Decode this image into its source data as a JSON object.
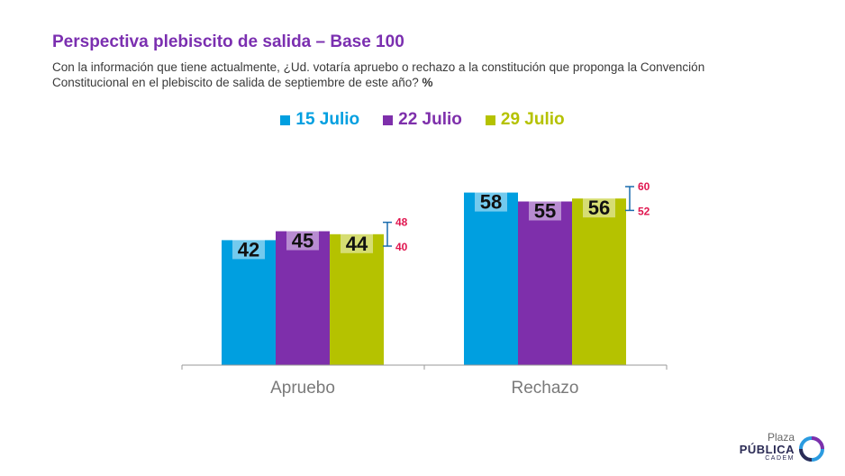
{
  "header": {
    "title": "Perspectiva plebiscito de salida – Base 100",
    "subtitle": "Con la información que tiene actualmente, ¿Ud. votaría apruebo o rechazo a la constitución que proponga la Convención Constitucional en el plebiscito de salida de septiembre de este año?",
    "unit": "%"
  },
  "colors": {
    "s1": "#009fe0",
    "s2": "#7e2fab",
    "s3": "#b5c200",
    "error": "#e0164f",
    "errorbar": "#1b6cae"
  },
  "chart_data": {
    "type": "bar",
    "categories": [
      "Apruebo",
      "Rechazo"
    ],
    "series": [
      {
        "name": "15 Julio",
        "values": [
          42,
          58
        ]
      },
      {
        "name": "22 Julio",
        "values": [
          45,
          55
        ]
      },
      {
        "name": "29 Julio",
        "values": [
          44,
          56
        ]
      }
    ],
    "error_range": [
      {
        "category": "Apruebo",
        "low": 40,
        "high": 48
      },
      {
        "category": "Rechazo",
        "low": 52,
        "high": 60
      }
    ],
    "ylim": [
      0,
      100
    ],
    "title": "Perspectiva plebiscito de salida – Base 100",
    "xlabel": "",
    "ylabel": "",
    "legend": "top-center",
    "grid": false
  },
  "logo": {
    "line1": "Plaza",
    "line2": "PÚBLICA",
    "line3": "CADEM"
  }
}
